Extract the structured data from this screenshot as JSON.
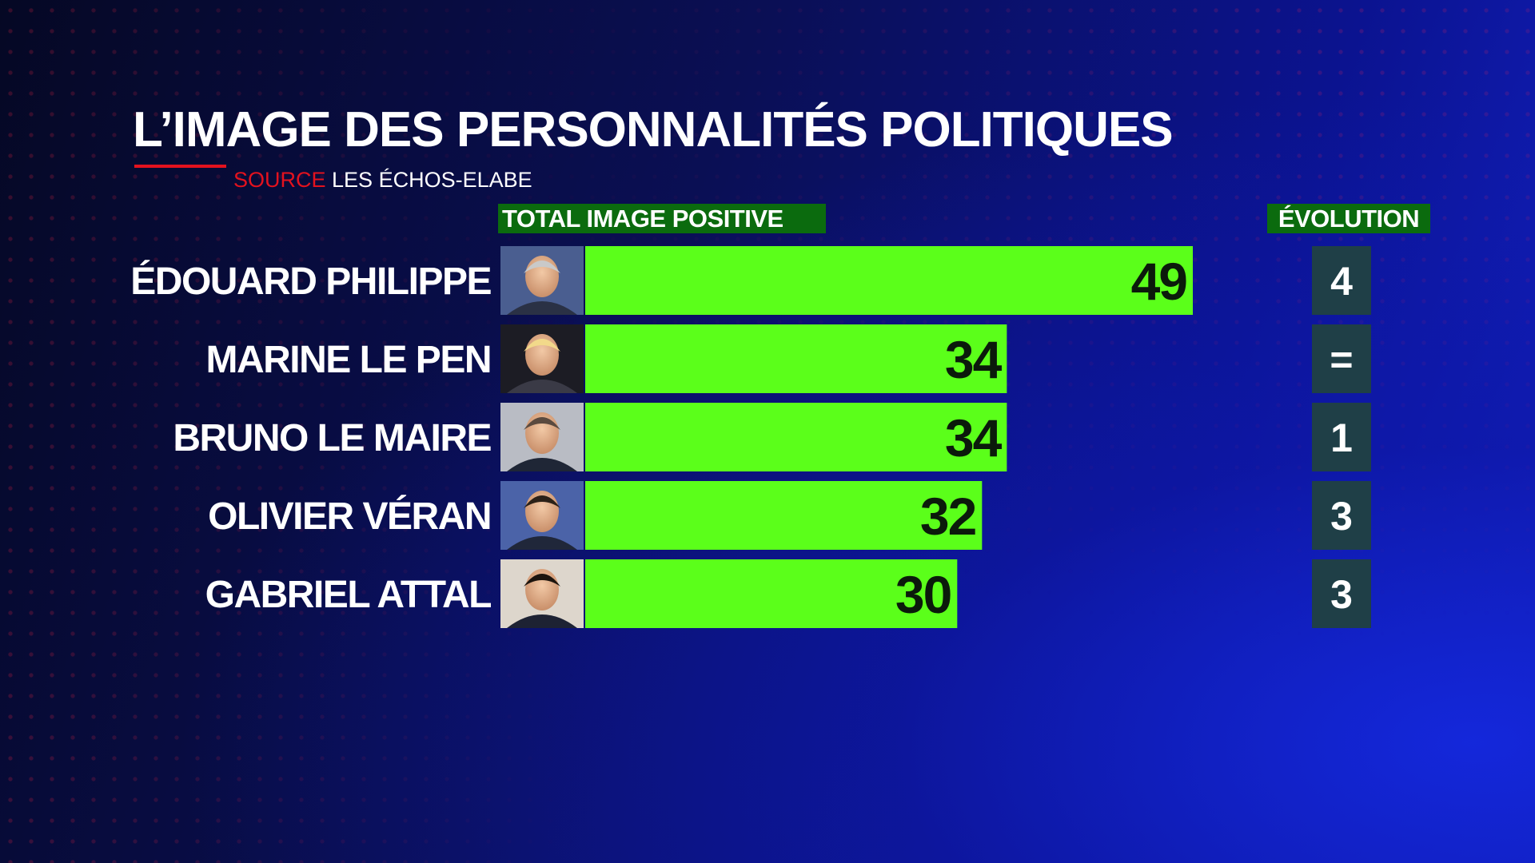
{
  "header": {
    "title": "L’IMAGE DES PERSONNALITÉS POLITIQUES",
    "source_label": "SOURCE",
    "source_value": "LES ÉCHOS-ELABE"
  },
  "columns": {
    "main": "TOTAL IMAGE POSITIVE",
    "evolution": "ÉVOLUTION"
  },
  "colors": {
    "bar": "#5bff1a",
    "column_header_bg": "#0b6b0e",
    "evolution_box": "#1f3f47",
    "source_label": "#e3121e"
  },
  "chart_data": {
    "type": "bar",
    "orientation": "horizontal",
    "title": "L’IMAGE DES PERSONNALITÉS POLITIQUES",
    "categories": [
      "ÉDOUARD PHILIPPE",
      "MARINE LE PEN",
      "BRUNO LE MAIRE",
      "OLIVIER VÉRAN",
      "GABRIEL ATTAL"
    ],
    "values": [
      49,
      34,
      34,
      32,
      30
    ],
    "evolution": [
      "4",
      "=",
      "1",
      "3",
      "3"
    ],
    "avatar_icons": [
      "portrait-edouard-philippe",
      "portrait-marine-le-pen",
      "portrait-bruno-le-maire",
      "portrait-olivier-veran",
      "portrait-gabriel-attal"
    ],
    "xlim": [
      0,
      49
    ],
    "grid": false,
    "legend": "none"
  }
}
